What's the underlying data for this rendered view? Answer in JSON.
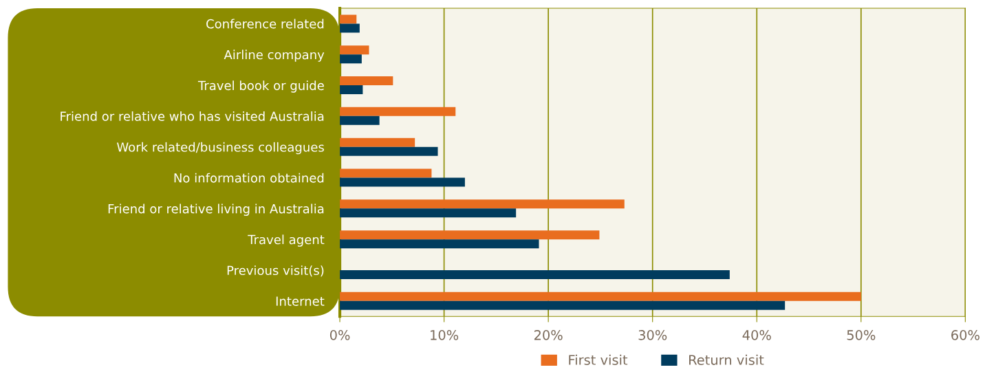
{
  "chart_data": {
    "type": "bar",
    "orientation": "horizontal",
    "categories": [
      "Conference related",
      "Airline company",
      "Travel book or guide",
      "Friend or relative who has visited Australia",
      "Work related/business colleagues",
      "No information obtained",
      "Friend or relative living in Australia",
      "Travel agent",
      "Previous visit(s)",
      "Internet"
    ],
    "series": [
      {
        "name": "First visit",
        "color": "#e96d1f",
        "values": [
          1.6,
          2.8,
          5.1,
          11.1,
          7.2,
          8.8,
          27.3,
          24.9,
          null,
          50.0
        ]
      },
      {
        "name": "Return visit",
        "color": "#003c5e",
        "values": [
          1.9,
          2.1,
          2.2,
          3.8,
          9.4,
          12.0,
          16.9,
          19.1,
          37.4,
          42.7
        ]
      }
    ],
    "xlim": [
      0,
      60
    ],
    "xticks": [
      {
        "value": 0,
        "label": "0%"
      },
      {
        "value": 10,
        "label": "10%"
      },
      {
        "value": 20,
        "label": "20%"
      },
      {
        "value": 30,
        "label": "30%"
      },
      {
        "value": 40,
        "label": "40%"
      },
      {
        "value": 50,
        "label": "50%"
      },
      {
        "value": 60,
        "label": "60%"
      }
    ],
    "grid": "x",
    "legend": "bottom"
  }
}
